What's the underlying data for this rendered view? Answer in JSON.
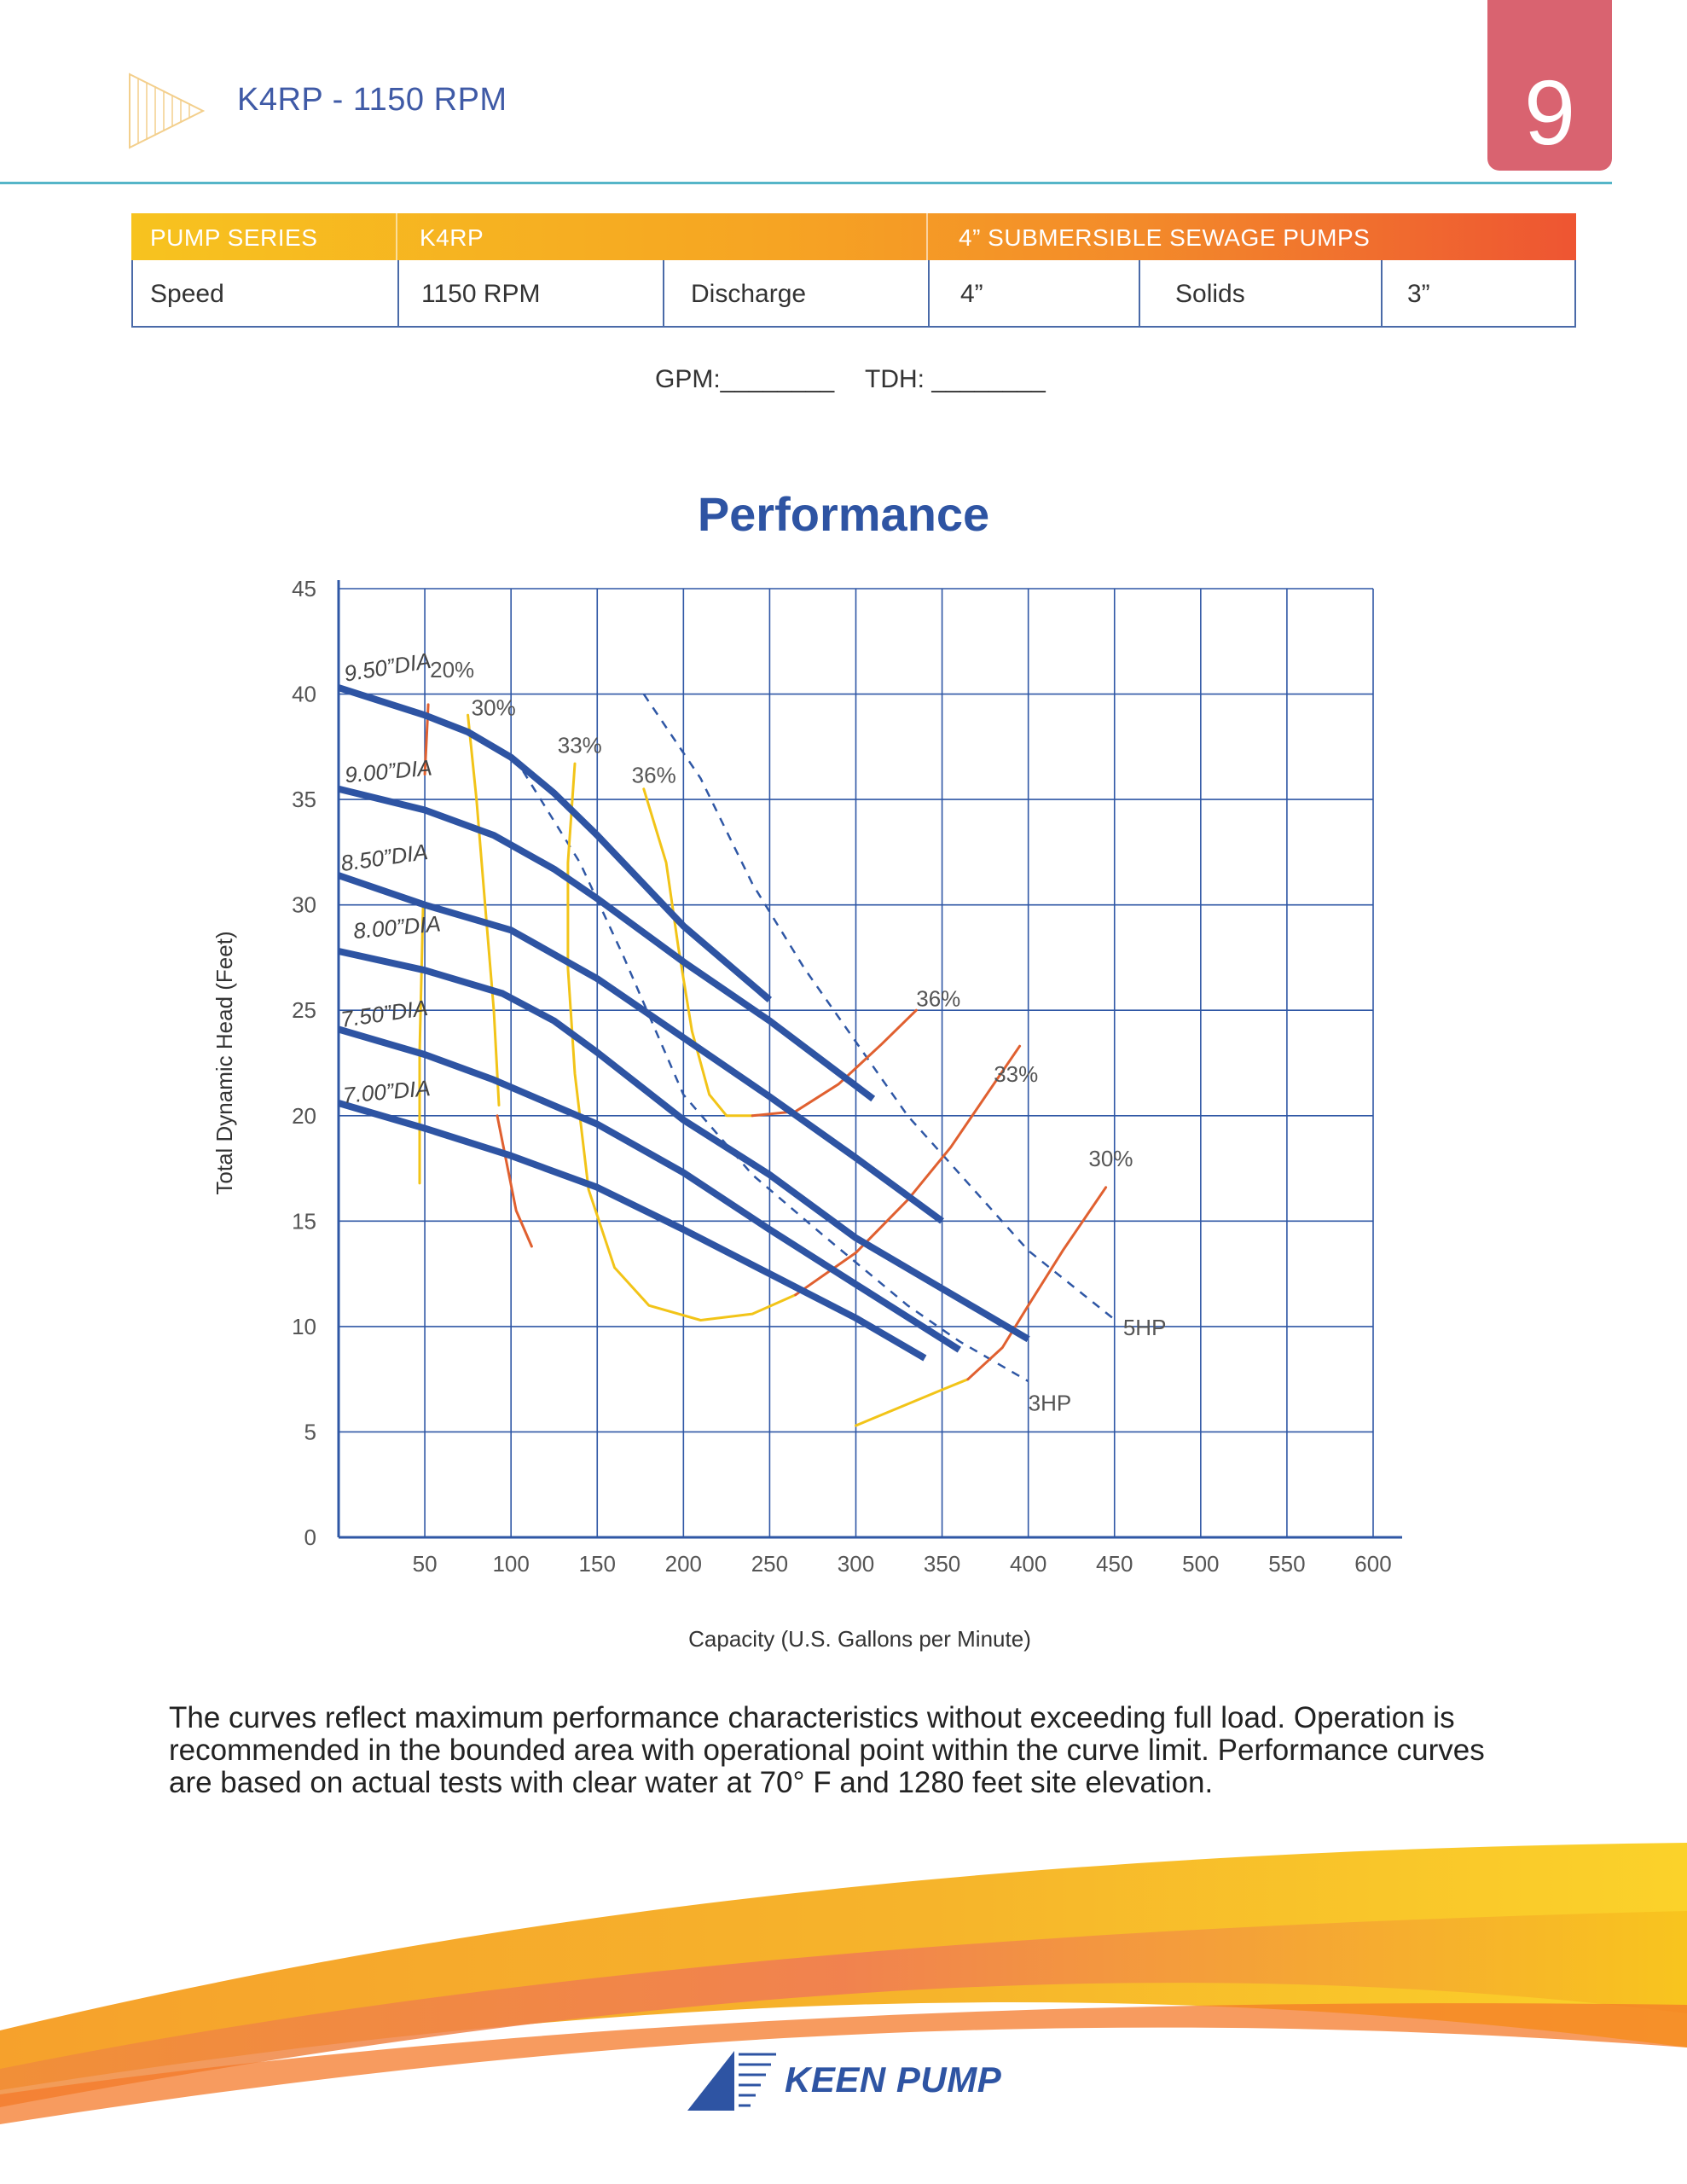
{
  "header": {
    "title": "K4RP - 1150 RPM",
    "page_number": "9"
  },
  "spec_table": {
    "head": [
      "PUMP SERIES",
      "K4RP",
      "4” SUBMERSIBLE SEWAGE PUMPS"
    ],
    "row": [
      "Speed",
      "1150 RPM",
      "Discharge",
      "4”",
      "Solids",
      "3”"
    ]
  },
  "fill_in": {
    "gpm": "GPM:________",
    "tdh": "TDH: ________"
  },
  "chart_data": {
    "type": "line",
    "title": "Performance",
    "xlabel": "Capacity (U.S. Gallons per Minute)",
    "ylabel": "Total Dynamic Head (Feet)",
    "xlim": [
      0,
      600
    ],
    "ylim": [
      0,
      45
    ],
    "x_ticks": [
      50,
      100,
      150,
      200,
      250,
      300,
      350,
      400,
      450,
      500,
      550,
      600
    ],
    "y_ticks": [
      0,
      5,
      10,
      15,
      20,
      25,
      30,
      35,
      40,
      45
    ],
    "grid": true,
    "impeller_curves": [
      {
        "name": "9.50”DIA",
        "points": [
          [
            0,
            40.3
          ],
          [
            50,
            39
          ],
          [
            75,
            38.2
          ],
          [
            100,
            37
          ],
          [
            125,
            35.3
          ],
          [
            150,
            33.3
          ],
          [
            200,
            29
          ],
          [
            250,
            25.5
          ]
        ]
      },
      {
        "name": "9.00”DIA",
        "points": [
          [
            0,
            35.5
          ],
          [
            50,
            34.5
          ],
          [
            90,
            33.3
          ],
          [
            125,
            31.7
          ],
          [
            150,
            30.3
          ],
          [
            200,
            27.3
          ],
          [
            250,
            24.5
          ],
          [
            310,
            20.8
          ]
        ]
      },
      {
        "name": "8.50”DIA",
        "points": [
          [
            0,
            31.4
          ],
          [
            50,
            30
          ],
          [
            100,
            28.8
          ],
          [
            150,
            26.5
          ],
          [
            200,
            23.7
          ],
          [
            250,
            20.9
          ],
          [
            300,
            18
          ],
          [
            350,
            15
          ]
        ]
      },
      {
        "name": "8.00”DIA",
        "points": [
          [
            0,
            27.8
          ],
          [
            50,
            26.9
          ],
          [
            95,
            25.8
          ],
          [
            125,
            24.5
          ],
          [
            150,
            23
          ],
          [
            200,
            19.8
          ],
          [
            250,
            17.2
          ],
          [
            300,
            14.2
          ],
          [
            350,
            11.8
          ],
          [
            400,
            9.4
          ]
        ]
      },
      {
        "name": "7.50”DIA",
        "points": [
          [
            0,
            24.1
          ],
          [
            50,
            22.9
          ],
          [
            90,
            21.7
          ],
          [
            150,
            19.6
          ],
          [
            200,
            17.3
          ],
          [
            250,
            14.6
          ],
          [
            300,
            12
          ],
          [
            360,
            8.9
          ]
        ]
      },
      {
        "name": "7.00”DIA",
        "points": [
          [
            0,
            20.6
          ],
          [
            50,
            19.4
          ],
          [
            100,
            18.1
          ],
          [
            120,
            17.5
          ],
          [
            150,
            16.6
          ],
          [
            200,
            14.6
          ],
          [
            250,
            12.5
          ],
          [
            300,
            10.4
          ],
          [
            340,
            8.5
          ]
        ]
      }
    ],
    "efficiency_labels": [
      "20%",
      "30%",
      "33%",
      "36%",
      "36%",
      "33%",
      "30%"
    ],
    "efficiency_curves": [
      {
        "label": "20%",
        "color": "#e06030",
        "points": [
          [
            52,
            39.5
          ],
          [
            50,
            36.2
          ]
        ]
      },
      {
        "label": "20%",
        "color": "#f2c418",
        "points": [
          [
            49,
            30
          ],
          [
            47,
            23
          ],
          [
            47,
            16.8
          ]
        ]
      },
      {
        "label": "20%",
        "color": "#e06030",
        "points": [
          [
            92,
            20
          ],
          [
            103,
            15.5
          ],
          [
            112,
            13.8
          ]
        ]
      },
      {
        "label": "30%",
        "color": "#f2c418",
        "points": [
          [
            75,
            39
          ],
          [
            80,
            35
          ],
          [
            85,
            30
          ],
          [
            90,
            25
          ],
          [
            93,
            20.5
          ]
        ]
      },
      {
        "label": "33%",
        "color": "#f2c418",
        "points": [
          [
            137,
            36.7
          ],
          [
            133,
            32
          ],
          [
            133,
            27
          ],
          [
            137,
            22
          ],
          [
            145,
            16.5
          ],
          [
            160,
            12.8
          ],
          [
            180,
            11
          ],
          [
            210,
            10.3
          ],
          [
            240,
            10.6
          ],
          [
            265,
            11.5
          ]
        ]
      },
      {
        "label": "33%",
        "color": "#e06030",
        "points": [
          [
            265,
            11.5
          ],
          [
            300,
            13.5
          ],
          [
            330,
            16
          ],
          [
            355,
            18.5
          ],
          [
            380,
            21.5
          ],
          [
            395,
            23.3
          ]
        ]
      },
      {
        "label": "36%",
        "color": "#f2c418",
        "points": [
          [
            177,
            35.5
          ],
          [
            190,
            32
          ],
          [
            197,
            28
          ],
          [
            205,
            24
          ],
          [
            215,
            21
          ],
          [
            225,
            20
          ],
          [
            240,
            20
          ]
        ]
      },
      {
        "label": "36%",
        "color": "#e06030",
        "points": [
          [
            240,
            20
          ],
          [
            265,
            20.2
          ],
          [
            290,
            21.5
          ],
          [
            315,
            23.4
          ],
          [
            335,
            25
          ]
        ]
      },
      {
        "label": "30%",
        "color": "#f2c418",
        "points": [
          [
            300,
            5.3
          ],
          [
            350,
            7
          ],
          [
            365,
            7.5
          ]
        ]
      },
      {
        "label": "30%",
        "color": "#e06030",
        "points": [
          [
            365,
            7.5
          ],
          [
            385,
            9
          ],
          [
            400,
            11
          ],
          [
            420,
            13.6
          ],
          [
            445,
            16.6
          ]
        ]
      }
    ],
    "hp_limits": [
      {
        "name": "5HP",
        "points": [
          [
            177,
            40
          ],
          [
            210,
            36
          ],
          [
            240,
            31
          ],
          [
            270,
            27
          ],
          [
            330,
            20
          ],
          [
            400,
            13.6
          ],
          [
            452,
            10.2
          ]
        ]
      },
      {
        "name": "3HP",
        "points": [
          [
            102,
            37
          ],
          [
            140,
            32
          ],
          [
            165,
            27.6
          ],
          [
            200,
            21
          ],
          [
            240,
            17.2
          ],
          [
            280,
            14.4
          ],
          [
            330,
            11
          ],
          [
            360,
            9.3
          ],
          [
            400,
            7.4
          ]
        ]
      }
    ],
    "hp_labels": [
      "5HP",
      "3HP"
    ]
  },
  "footnote": "The curves reflect maximum performance characteristics without exceeding full load. Operation is recommended in the bounded area with operational point within the curve limit. Performance curves are based on actual tests with clear water at 70° F and 1280 feet site elevation.",
  "brand": {
    "name": "KEEN PUMP"
  },
  "colors": {
    "accent_blue": "#2e54a3",
    "tab_pink": "#d96370",
    "eff_yellow": "#f2c418",
    "eff_orange": "#e06030"
  }
}
